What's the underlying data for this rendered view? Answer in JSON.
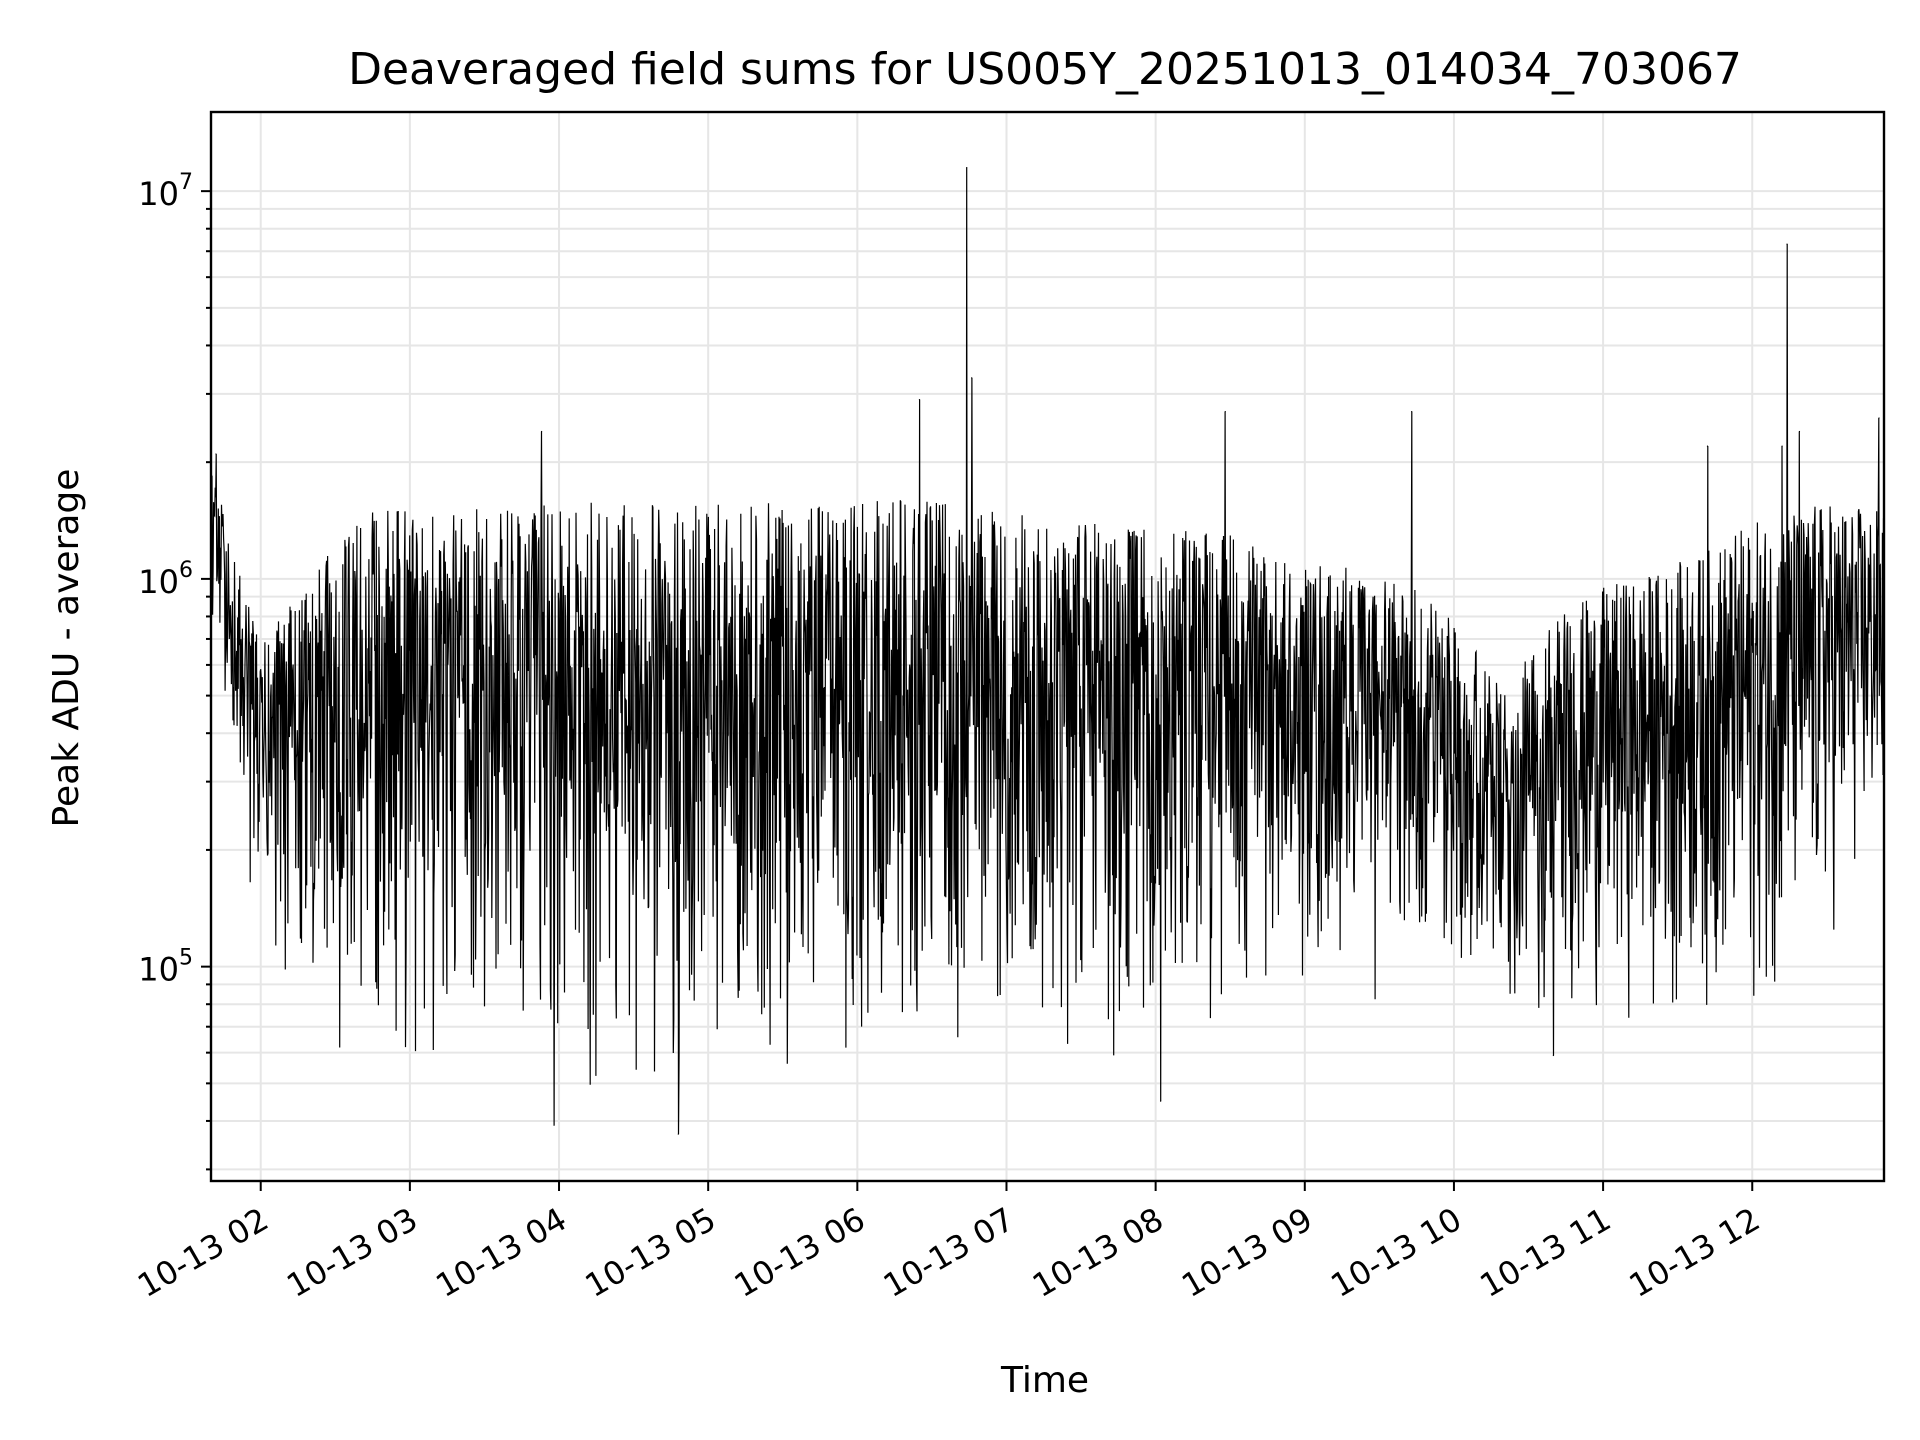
{
  "chart_data": {
    "type": "line",
    "title": "Deaveraged field sums for US005Y_20251013_014034_703067",
    "xlabel": "Time",
    "ylabel": "Peak ADU - average",
    "yscale": "log",
    "ylim": [
      28000,
      16000000
    ],
    "xlim": [
      "2025-10-13 01:40",
      "2025-10-13 12:53"
    ],
    "grid": true,
    "line_color": "#000000",
    "grid_color": "#e6e6e6",
    "x_ticks": [
      {
        "value": "2025-10-13 02:00",
        "label": "10-13 02"
      },
      {
        "value": "2025-10-13 03:00",
        "label": "10-13 03"
      },
      {
        "value": "2025-10-13 04:00",
        "label": "10-13 04"
      },
      {
        "value": "2025-10-13 05:00",
        "label": "10-13 05"
      },
      {
        "value": "2025-10-13 06:00",
        "label": "10-13 06"
      },
      {
        "value": "2025-10-13 07:00",
        "label": "10-13 07"
      },
      {
        "value": "2025-10-13 08:00",
        "label": "10-13 08"
      },
      {
        "value": "2025-10-13 09:00",
        "label": "10-13 09"
      },
      {
        "value": "2025-10-13 10:00",
        "label": "10-13 10"
      },
      {
        "value": "2025-10-13 11:00",
        "label": "10-13 11"
      },
      {
        "value": "2025-10-13 12:00",
        "label": "10-13 12"
      }
    ],
    "y_ticks": [
      {
        "value": 100000,
        "base": "10",
        "exp": "5"
      },
      {
        "value": 1000000,
        "base": "10",
        "exp": "6"
      },
      {
        "value": 10000000,
        "base": "10",
        "exp": "7"
      }
    ],
    "series": [
      {
        "envelope": [
          {
            "t": "2025-10-13 01:40",
            "low": 800000,
            "high": 2000000
          },
          {
            "t": "2025-10-13 01:50",
            "low": 300000,
            "high": 1100000
          },
          {
            "t": "2025-10-13 02:00",
            "low": 90000,
            "high": 700000
          },
          {
            "t": "2025-10-13 02:20",
            "low": 60000,
            "high": 1000000
          },
          {
            "t": "2025-10-13 02:40",
            "low": 55000,
            "high": 1500000
          },
          {
            "t": "2025-10-13 03:00",
            "low": 55000,
            "high": 1500000
          },
          {
            "t": "2025-10-13 03:30",
            "low": 50000,
            "high": 1550000
          },
          {
            "t": "2025-10-13 04:00",
            "low": 45000,
            "high": 1600000
          },
          {
            "t": "2025-10-13 04:30",
            "low": 40000,
            "high": 1550000
          },
          {
            "t": "2025-10-13 04:50",
            "low": 45000,
            "high": 1550000
          },
          {
            "t": "2025-10-13 05:30",
            "low": 45000,
            "high": 1600000
          },
          {
            "t": "2025-10-13 06:00",
            "low": 55000,
            "high": 1600000
          },
          {
            "t": "2025-10-13 06:30",
            "low": 60000,
            "high": 1600000
          },
          {
            "t": "2025-10-13 07:00",
            "low": 60000,
            "high": 1500000
          },
          {
            "t": "2025-10-13 07:30",
            "low": 55000,
            "high": 1400000
          },
          {
            "t": "2025-10-13 08:00",
            "low": 60000,
            "high": 1350000
          },
          {
            "t": "2025-10-13 08:30",
            "low": 70000,
            "high": 1300000
          },
          {
            "t": "2025-10-13 09:00",
            "low": 75000,
            "high": 1100000
          },
          {
            "t": "2025-10-13 09:30",
            "low": 80000,
            "high": 1050000
          },
          {
            "t": "2025-10-13 10:00",
            "low": 100000,
            "high": 850000
          },
          {
            "t": "2025-10-13 10:20",
            "low": 65000,
            "high": 500000
          },
          {
            "t": "2025-10-13 10:40",
            "low": 75000,
            "high": 800000
          },
          {
            "t": "2025-10-13 11:00",
            "low": 70000,
            "high": 950000
          },
          {
            "t": "2025-10-13 11:30",
            "low": 70000,
            "high": 1100000
          },
          {
            "t": "2025-10-13 12:00",
            "low": 70000,
            "high": 1400000
          },
          {
            "t": "2025-10-13 12:30",
            "low": 100000,
            "high": 1600000
          },
          {
            "t": "2025-10-13 12:53",
            "low": 200000,
            "high": 1500000
          }
        ],
        "spikes": [
          {
            "t": "2025-10-13 06:44",
            "value": 11500000
          },
          {
            "t": "2025-10-13 06:46",
            "value": 3300000
          },
          {
            "t": "2025-10-13 06:25",
            "value": 2900000
          },
          {
            "t": "2025-10-13 12:14",
            "value": 7300000
          },
          {
            "t": "2025-10-13 03:53",
            "value": 2400000
          },
          {
            "t": "2025-10-13 08:28",
            "value": 2700000
          },
          {
            "t": "2025-10-13 09:43",
            "value": 2700000
          },
          {
            "t": "2025-10-13 12:19",
            "value": 2400000
          },
          {
            "t": "2025-10-13 12:51",
            "value": 2600000
          },
          {
            "t": "2025-10-13 11:42",
            "value": 2200000
          },
          {
            "t": "2025-10-13 12:12",
            "value": 2200000
          },
          {
            "t": "2025-10-13 01:42",
            "value": 2100000
          },
          {
            "t": "2025-10-13 04:48",
            "value": 37000
          },
          {
            "t": "2025-10-13 03:58",
            "value": 39000
          },
          {
            "t": "2025-10-13 08:02",
            "value": 45000
          },
          {
            "t": "2025-10-13 10:40",
            "value": 59000
          }
        ]
      }
    ]
  }
}
